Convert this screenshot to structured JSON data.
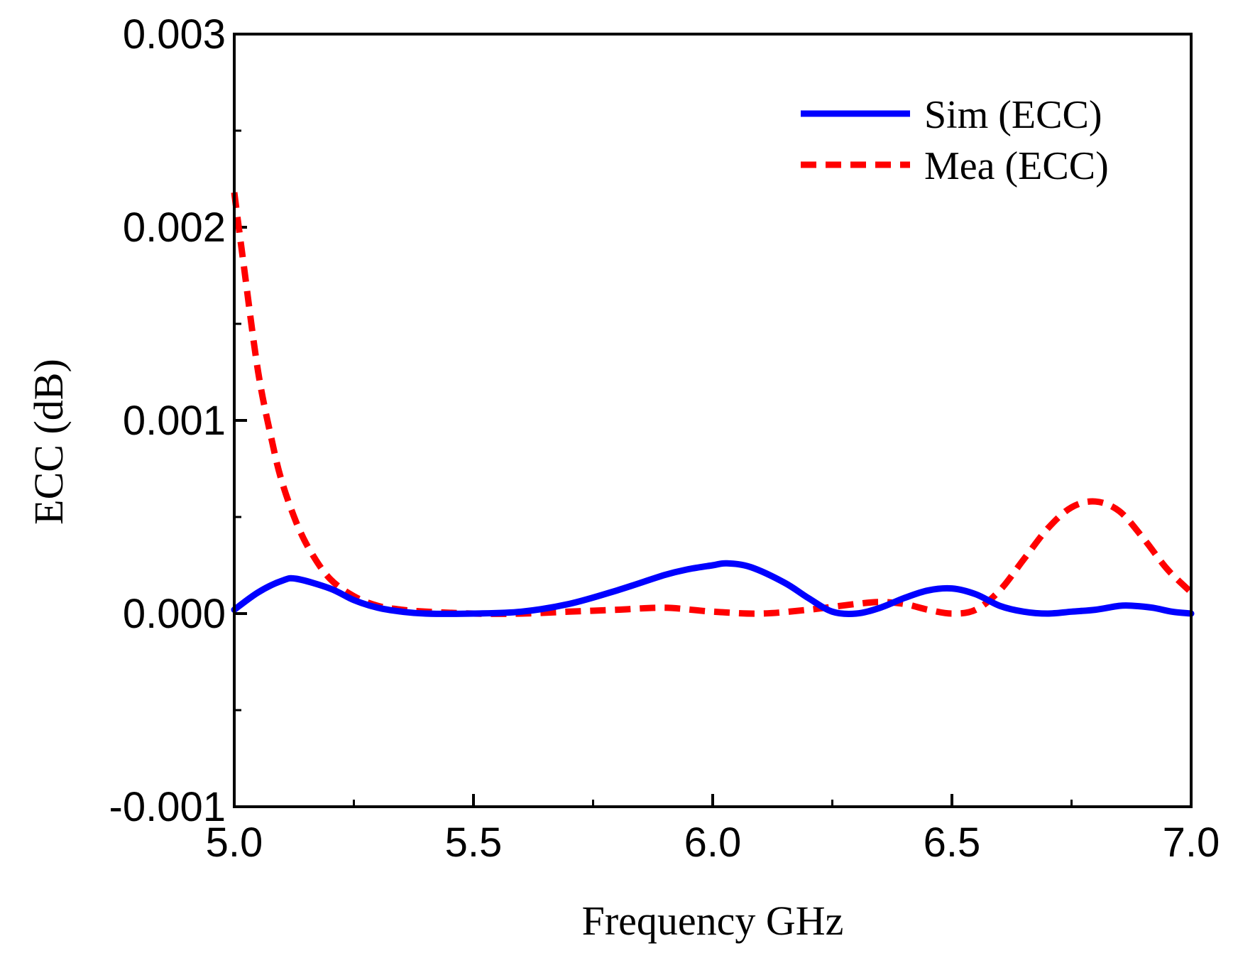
{
  "chart_data": {
    "type": "line",
    "title": "",
    "xlabel": "Frequency GHz",
    "ylabel": "ECC (dB)",
    "xlim": [
      5.0,
      7.0
    ],
    "ylim": [
      -0.001,
      0.003
    ],
    "xticks": [
      5.0,
      5.5,
      6.0,
      6.5,
      7.0
    ],
    "xtick_labels": [
      "5.0",
      "5.5",
      "6.0",
      "6.5",
      "7.0"
    ],
    "yticks": [
      -0.001,
      0.0,
      0.001,
      0.002,
      0.003
    ],
    "ytick_labels": [
      "-0.001",
      "0.000",
      "0.001",
      "0.002",
      "0.003"
    ],
    "grid": false,
    "legend_position": "top-right",
    "series": [
      {
        "name": "Sim (ECC)",
        "color": "#0000ff",
        "style": "solid",
        "x": [
          5.0,
          5.05,
          5.1,
          5.13,
          5.2,
          5.25,
          5.3,
          5.35,
          5.4,
          5.5,
          5.6,
          5.7,
          5.8,
          5.9,
          5.95,
          6.0,
          6.03,
          6.08,
          6.15,
          6.2,
          6.25,
          6.3,
          6.35,
          6.4,
          6.45,
          6.5,
          6.55,
          6.6,
          6.65,
          6.7,
          6.75,
          6.8,
          6.85,
          6.88,
          6.92,
          6.96,
          7.0
        ],
        "values": [
          2e-05,
          0.00011,
          0.00017,
          0.00018,
          0.00013,
          7e-05,
          3e-05,
          1e-05,
          0.0,
          0.0,
          1e-05,
          5e-05,
          0.00012,
          0.0002,
          0.00023,
          0.00025,
          0.00026,
          0.00024,
          0.00016,
          8e-05,
          1e-05,
          0.0,
          3e-05,
          8e-05,
          0.00012,
          0.00013,
          0.0001,
          4e-05,
          1e-05,
          0.0,
          1e-05,
          2e-05,
          4e-05,
          4e-05,
          3e-05,
          1e-05,
          0.0
        ]
      },
      {
        "name": "Mea (ECC)",
        "color": "#ff0000",
        "style": "dashed",
        "x": [
          5.0,
          5.02,
          5.05,
          5.08,
          5.1,
          5.13,
          5.16,
          5.2,
          5.25,
          5.3,
          5.35,
          5.4,
          5.5,
          5.6,
          5.7,
          5.8,
          5.9,
          6.0,
          6.1,
          6.2,
          6.3,
          6.35,
          6.4,
          6.45,
          6.5,
          6.55,
          6.6,
          6.65,
          6.7,
          6.75,
          6.8,
          6.85,
          6.9,
          6.95,
          7.0
        ],
        "values": [
          0.00218,
          0.0018,
          0.00125,
          0.00088,
          0.00068,
          0.00047,
          0.00032,
          0.00018,
          9e-05,
          4e-05,
          2e-05,
          1e-05,
          0.0,
          0.0,
          1e-05,
          2e-05,
          3e-05,
          1e-05,
          0.0,
          2e-05,
          5e-05,
          6e-05,
          5e-05,
          2e-05,
          0.0,
          2e-05,
          0.00012,
          0.00028,
          0.00044,
          0.00055,
          0.00058,
          0.00053,
          0.00039,
          0.00023,
          0.00011
        ]
      }
    ]
  }
}
